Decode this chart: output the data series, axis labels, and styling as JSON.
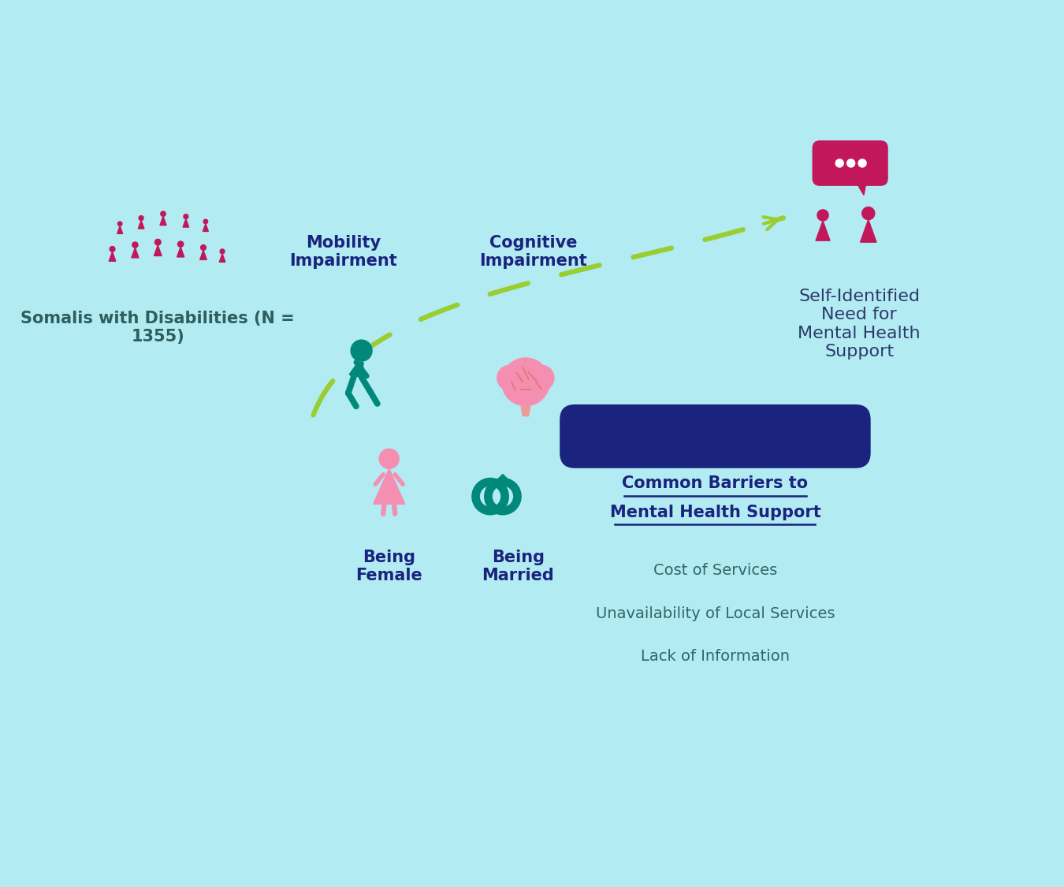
{
  "background_color": "#b2ebf2",
  "title_text": "Self-Identified\nNeed for\nMental Health\nSupport",
  "title_color": "#2d3a6b",
  "mobility_label": "Mobility\nImpairment",
  "cognitive_label": "Cognitive\nImpairment",
  "female_label": "Being\nFemale",
  "married_label": "Being\nMarried",
  "somalis_label": "Somalis with Disabilities (N =\n1355)",
  "barriers_title_line1": "Common Barriers to",
  "barriers_title_line2": "Mental Health Support",
  "barriers_title_color": "#1a237e",
  "barrier1": "Cost of Services",
  "barrier2": "Unavailability of Local Services",
  "barrier3": "Lack of Information",
  "barriers_text_color": "#336666",
  "mobility_color": "#00897b",
  "cognitive_color_brain": "#f48fb1",
  "cognitive_color_stem": "#ef9a9a",
  "female_color": "#f48fb1",
  "married_color": "#00897b",
  "people_color": "#c2185b",
  "arrow_color": "#9acd32",
  "label_color": "#1a237e",
  "somalis_label_color": "#2e5e5e",
  "barrier_bar_color": "#1a237e"
}
